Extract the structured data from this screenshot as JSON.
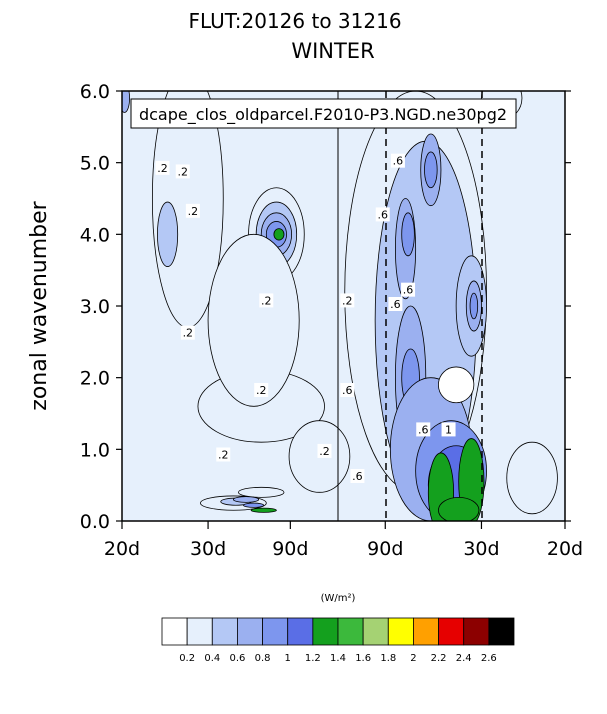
{
  "chart_data": {
    "type": "heatmap",
    "title": "FLUT:20126 to 31216",
    "subtitle": "WINTER",
    "ylabel": "zonal wavenumber",
    "xlabel": "",
    "label_box": "dcape_clos_oldparcel.F2010-P3.NGD.ne30pg2",
    "y_range": [
      0.0,
      6.0
    ],
    "y_ticks": [
      "0.0",
      "1.0",
      "2.0",
      "3.0",
      "4.0",
      "5.0",
      "6.0"
    ],
    "x_ticks": [
      "20d",
      "30d",
      "90d",
      "90d",
      "30d",
      "20d"
    ],
    "x_tick_side": [
      "westward",
      "westward",
      "westward",
      "eastward",
      "eastward",
      "eastward"
    ],
    "dispersion_lines": "dashed lines at 90d and 30d periods on eastward side; solid line at zero frequency",
    "contour_labels": [
      ".2",
      ".2",
      ".2",
      ".2",
      ".2",
      ".2",
      ".2",
      ".2",
      ".2",
      ".6",
      ".6",
      ".6",
      ".6",
      ".6",
      ".6",
      ".6",
      "1"
    ],
    "colorbar": {
      "unit_label": "(W/m²)",
      "levels": [
        "0.2",
        "0.4",
        "0.6",
        "0.8",
        "1",
        "1.2",
        "1.4",
        "1.6",
        "1.8",
        "2",
        "2.2",
        "2.4",
        "2.6"
      ],
      "colors": [
        "#ffffff",
        "#e6f0fc",
        "#b4c8f5",
        "#9bb0f0",
        "#7d96ee",
        "#5a6ee6",
        "#14a01e",
        "#3cb93c",
        "#a5d273",
        "#ffff00",
        "#ffa000",
        "#e60000",
        "#8c0000",
        "#000000"
      ]
    },
    "blobs": [
      {
        "x": 0.44,
        "y": 0.25,
        "rx": 0.13,
        "ry": 0.1,
        "level": 0.2
      },
      {
        "x": 0.55,
        "y": 0.4,
        "rx": 0.09,
        "ry": 0.07,
        "level": 0.2
      },
      {
        "x": 0.45,
        "y": 0.27,
        "rx": 0.06,
        "ry": 0.05,
        "level": 0.4
      },
      {
        "x": 0.49,
        "y": 0.3,
        "rx": 0.05,
        "ry": 0.04,
        "level": 0.6
      },
      {
        "x": 0.52,
        "y": 0.22,
        "rx": 0.04,
        "ry": 0.03,
        "level": 0.8
      },
      {
        "x": 0.56,
        "y": 0.15,
        "rx": 0.05,
        "ry": 0.03,
        "level": 1.2
      },
      {
        "x": 0.26,
        "y": 4.5,
        "rx": 0.14,
        "ry": 1.8,
        "level": 0.2
      },
      {
        "x": 0.18,
        "y": 4.0,
        "rx": 0.04,
        "ry": 0.45,
        "level": 0.4
      },
      {
        "x": 0.61,
        "y": 4.0,
        "rx": 0.11,
        "ry": 0.65,
        "level": 0.2
      },
      {
        "x": 0.61,
        "y": 4.0,
        "rx": 0.08,
        "ry": 0.45,
        "level": 0.4
      },
      {
        "x": 0.61,
        "y": 4.0,
        "rx": 0.06,
        "ry": 0.3,
        "level": 0.6
      },
      {
        "x": 0.61,
        "y": 4.0,
        "rx": 0.04,
        "ry": 0.18,
        "level": 0.8
      },
      {
        "x": 0.62,
        "y": 4.0,
        "rx": 0.02,
        "ry": 0.08,
        "level": 1.2
      },
      {
        "x": 0.55,
        "y": 1.6,
        "rx": 0.25,
        "ry": 0.5,
        "level": 0.2
      },
      {
        "x": 0.52,
        "y": 2.8,
        "rx": 0.18,
        "ry": 1.2,
        "level": 0.2
      },
      {
        "x": 0.78,
        "y": 0.9,
        "rx": 0.12,
        "ry": 0.5,
        "level": 0.2
      },
      {
        "x": 1.16,
        "y": 3.2,
        "rx": 0.28,
        "ry": 2.8,
        "level": 0.2
      },
      {
        "x": 1.2,
        "y": 2.8,
        "rx": 0.2,
        "ry": 2.5,
        "level": 0.4
      },
      {
        "x": 1.12,
        "y": 3.8,
        "rx": 0.04,
        "ry": 0.7,
        "level": 0.6
      },
      {
        "x": 1.13,
        "y": 4.0,
        "rx": 0.025,
        "ry": 0.3,
        "level": 0.8
      },
      {
        "x": 1.22,
        "y": 4.9,
        "rx": 0.04,
        "ry": 0.5,
        "level": 0.6
      },
      {
        "x": 1.22,
        "y": 4.9,
        "rx": 0.025,
        "ry": 0.25,
        "level": 0.8
      },
      {
        "x": 1.14,
        "y": 2.0,
        "rx": 0.06,
        "ry": 1.0,
        "level": 0.6
      },
      {
        "x": 1.14,
        "y": 2.0,
        "rx": 0.035,
        "ry": 0.4,
        "level": 0.8
      },
      {
        "x": 1.22,
        "y": 1.0,
        "rx": 0.16,
        "ry": 1.0,
        "level": 0.6
      },
      {
        "x": 1.3,
        "y": 0.7,
        "rx": 0.14,
        "ry": 0.7,
        "level": 0.8
      },
      {
        "x": 1.32,
        "y": 0.5,
        "rx": 0.11,
        "ry": 0.55,
        "level": 1.0
      },
      {
        "x": 1.26,
        "y": 0.4,
        "rx": 0.05,
        "ry": 0.55,
        "level": 1.2
      },
      {
        "x": 1.38,
        "y": 0.55,
        "rx": 0.05,
        "ry": 0.6,
        "level": 1.2
      },
      {
        "x": 1.33,
        "y": 0.15,
        "rx": 0.08,
        "ry": 0.18,
        "level": 1.2
      },
      {
        "x": 1.38,
        "y": 3.0,
        "rx": 0.06,
        "ry": 0.7,
        "level": 0.4
      },
      {
        "x": 1.39,
        "y": 3.0,
        "rx": 0.03,
        "ry": 0.35,
        "level": 0.6
      },
      {
        "x": 1.39,
        "y": 3.0,
        "rx": 0.015,
        "ry": 0.18,
        "level": 0.8
      },
      {
        "x": 1.32,
        "y": 1.9,
        "rx": 0.07,
        "ry": 0.25,
        "level": 0.0
      },
      {
        "x": 1.62,
        "y": 0.6,
        "rx": 0.1,
        "ry": 0.5,
        "level": 0.2
      },
      {
        "x": 1.5,
        "y": 5.9,
        "rx": 0.08,
        "ry": 0.3,
        "level": 0.2
      },
      {
        "x": 0.01,
        "y": 5.9,
        "rx": 0.02,
        "ry": 0.2,
        "level": 0.6
      }
    ]
  }
}
